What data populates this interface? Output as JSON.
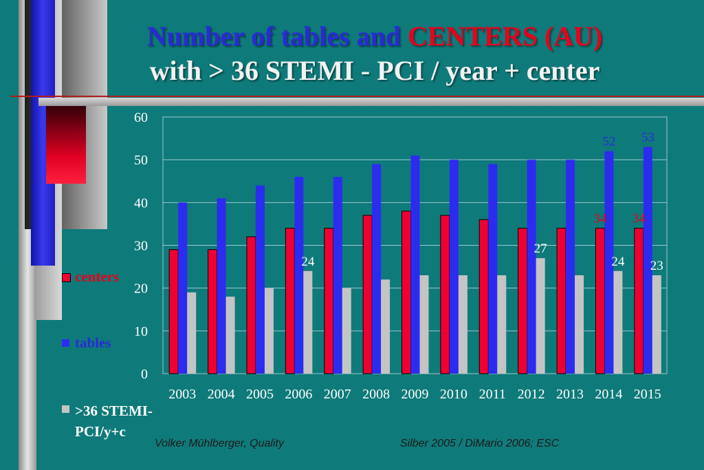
{
  "title": {
    "line1_part1": "Number of tables and ",
    "line1_part2": "CENTERS (AU)",
    "line2": "with > 36 STEMI - PCI / year + center"
  },
  "chart_data": {
    "type": "bar",
    "categories": [
      "2003",
      "2004",
      "2005",
      "2006",
      "2007",
      "2008",
      "2009",
      "2010",
      "2011",
      "2012",
      "2013",
      "2014",
      "2015"
    ],
    "series": [
      {
        "name": "centers",
        "color": "#ee0033",
        "values": [
          29,
          29,
          32,
          34,
          34,
          37,
          38,
          37,
          36,
          34,
          34,
          34,
          34
        ]
      },
      {
        "name": "tables",
        "color": "#2c2cf0",
        "values": [
          40,
          41,
          44,
          46,
          46,
          49,
          51,
          50,
          49,
          50,
          50,
          52,
          53
        ]
      },
      {
        "name": ">36 STEMI-PCI/y+c",
        "color": "#c4c4c4",
        "values": [
          19,
          18,
          20,
          24,
          20,
          22,
          23,
          23,
          23,
          27,
          23,
          24,
          23
        ]
      }
    ],
    "y_ticks": [
      "0",
      "10",
      "20",
      "30",
      "40",
      "50",
      "60"
    ],
    "ylim": [
      0,
      60
    ],
    "grid": true,
    "legend_position": "left",
    "data_labels": [
      {
        "series": 0,
        "index": 11,
        "text": "34",
        "color": "#e8001c"
      },
      {
        "series": 0,
        "index": 12,
        "text": "34",
        "color": "#e8001c"
      },
      {
        "series": 1,
        "index": 11,
        "text": "52",
        "color": "#2a2ad6"
      },
      {
        "series": 1,
        "index": 12,
        "text": "53",
        "color": "#2a2ad6"
      },
      {
        "series": 2,
        "index": 3,
        "text": "24",
        "color": "#ffffff"
      },
      {
        "series": 2,
        "index": 9,
        "text": "27",
        "color": "#ffffff"
      },
      {
        "series": 2,
        "index": 11,
        "text": "24",
        "color": "#ffffff"
      },
      {
        "series": 2,
        "index": 12,
        "text": "23",
        "color": "#ffffff"
      }
    ]
  },
  "legend": {
    "centers": "centers",
    "tables": "tables",
    "stemi_line1": ">36 STEMI-",
    "stemi_line2": "PCI/y+c"
  },
  "footer": {
    "left": "Volker Mühlberger, Quality",
    "right": "Silber 2005 / DiMario 2006; ESC"
  },
  "colors": {
    "background": "#0f7a7a",
    "title_blue": "#2a2ad6",
    "title_red": "#e8001c",
    "title_white": "#f2f2f2"
  }
}
